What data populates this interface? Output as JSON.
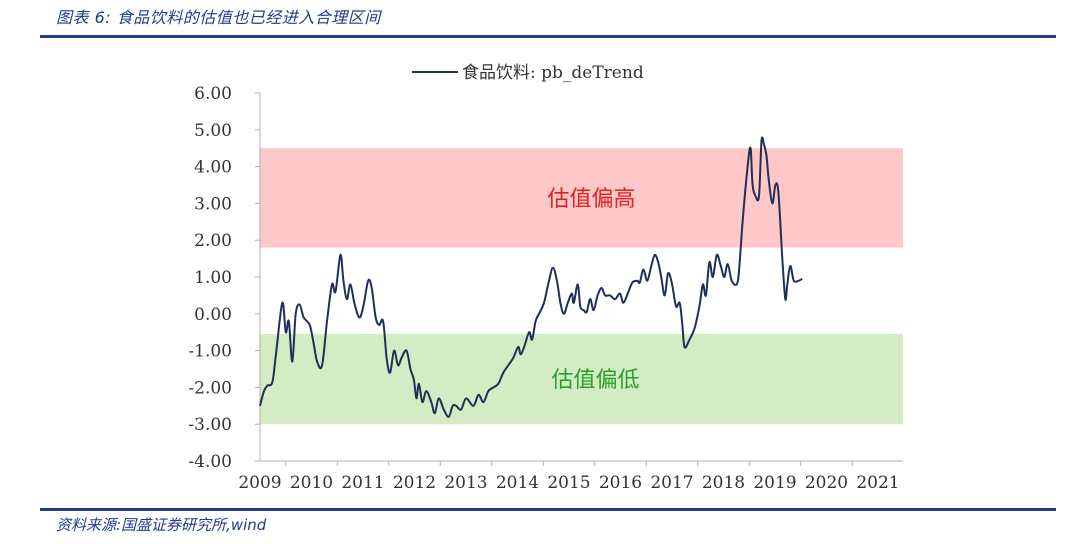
{
  "figure": {
    "title": "图表 6:  食品饮料的估值也已经进入合理区间",
    "source": "资料来源:国盛证券研究所,wind"
  },
  "chart_data": {
    "type": "line",
    "title": "",
    "xlabel": "",
    "ylabel": "",
    "legend": {
      "label": "食品饮料: pb_deTrend",
      "position": "top-center"
    },
    "ylim": [
      -4,
      6
    ],
    "yticks": [
      6,
      5,
      4,
      3,
      2,
      1,
      0,
      -1,
      -2,
      -3,
      -4
    ],
    "ytick_labels": [
      "6.00",
      "5.00",
      "4.00",
      "3.00",
      "2.00",
      "1.00",
      "0.00",
      "-1.00",
      "-2.00",
      "-3.00",
      "-4.00"
    ],
    "xlim": [
      2009,
      2021.95
    ],
    "xtick_labels": [
      "2009",
      "2010",
      "2011",
      "2012",
      "2013",
      "2014",
      "2015",
      "2016",
      "2017",
      "2018",
      "2019",
      "2020",
      "2021"
    ],
    "colors": {
      "line": "#1f2f57",
      "high_band": "#ffc8c8",
      "low_band": "#d3ecc3",
      "high_text": "#e02020",
      "low_text": "#2aa02a",
      "axis": "#b0b0b0"
    },
    "bands": [
      {
        "name": "high",
        "label": "估值偏高",
        "from": 1.8,
        "to": 4.5
      },
      {
        "name": "low",
        "label": "估值偏低",
        "from": -3.0,
        "to": -0.55
      }
    ],
    "series": [
      {
        "name": "食品饮料: pb_deTrend",
        "points": [
          [
            2009.0,
            -2.5
          ],
          [
            2009.08,
            -2.1
          ],
          [
            2009.15,
            -1.95
          ],
          [
            2009.25,
            -1.85
          ],
          [
            2009.33,
            -1.0
          ],
          [
            2009.45,
            0.3
          ],
          [
            2009.52,
            -0.5
          ],
          [
            2009.58,
            -0.2
          ],
          [
            2009.65,
            -1.3
          ],
          [
            2009.72,
            0.0
          ],
          [
            2009.8,
            0.25
          ],
          [
            2009.88,
            -0.1
          ],
          [
            2010.0,
            -0.3
          ],
          [
            2010.08,
            -0.8
          ],
          [
            2010.15,
            -1.3
          ],
          [
            2010.25,
            -1.4
          ],
          [
            2010.35,
            -0.2
          ],
          [
            2010.45,
            0.8
          ],
          [
            2010.52,
            0.6
          ],
          [
            2010.62,
            1.6
          ],
          [
            2010.68,
            0.9
          ],
          [
            2010.75,
            0.4
          ],
          [
            2010.82,
            0.8
          ],
          [
            2010.9,
            0.3
          ],
          [
            2011.0,
            -0.1
          ],
          [
            2011.08,
            0.2
          ],
          [
            2011.18,
            0.9
          ],
          [
            2011.25,
            0.7
          ],
          [
            2011.33,
            -0.1
          ],
          [
            2011.4,
            -0.3
          ],
          [
            2011.48,
            -0.2
          ],
          [
            2011.55,
            -1.2
          ],
          [
            2011.62,
            -1.6
          ],
          [
            2011.7,
            -1.0
          ],
          [
            2011.78,
            -1.4
          ],
          [
            2011.85,
            -1.2
          ],
          [
            2011.95,
            -1.0
          ],
          [
            2012.03,
            -1.5
          ],
          [
            2012.1,
            -1.8
          ],
          [
            2012.15,
            -2.3
          ],
          [
            2012.2,
            -1.9
          ],
          [
            2012.27,
            -2.4
          ],
          [
            2012.35,
            -2.1
          ],
          [
            2012.45,
            -2.4
          ],
          [
            2012.52,
            -2.7
          ],
          [
            2012.6,
            -2.3
          ],
          [
            2012.7,
            -2.6
          ],
          [
            2012.8,
            -2.8
          ],
          [
            2012.88,
            -2.5
          ],
          [
            2012.95,
            -2.5
          ],
          [
            2013.05,
            -2.6
          ],
          [
            2013.15,
            -2.3
          ],
          [
            2013.3,
            -2.5
          ],
          [
            2013.4,
            -2.2
          ],
          [
            2013.5,
            -2.4
          ],
          [
            2013.6,
            -2.1
          ],
          [
            2013.7,
            -2.0
          ],
          [
            2013.8,
            -1.9
          ],
          [
            2013.9,
            -1.6
          ],
          [
            2014.0,
            -1.4
          ],
          [
            2014.1,
            -1.2
          ],
          [
            2014.2,
            -0.9
          ],
          [
            2014.25,
            -1.1
          ],
          [
            2014.32,
            -0.9
          ],
          [
            2014.42,
            -0.5
          ],
          [
            2014.48,
            -0.7
          ],
          [
            2014.55,
            -0.2
          ],
          [
            2014.62,
            0.0
          ],
          [
            2014.72,
            0.3
          ],
          [
            2014.82,
            0.9
          ],
          [
            2014.9,
            1.25
          ],
          [
            2014.98,
            0.9
          ],
          [
            2015.05,
            0.3
          ],
          [
            2015.12,
            0.0
          ],
          [
            2015.2,
            0.3
          ],
          [
            2015.28,
            0.55
          ],
          [
            2015.32,
            0.3
          ],
          [
            2015.4,
            0.8
          ],
          [
            2015.45,
            0.2
          ],
          [
            2015.52,
            0.1
          ],
          [
            2015.58,
            0.05
          ],
          [
            2015.65,
            0.4
          ],
          [
            2015.72,
            0.1
          ],
          [
            2015.8,
            0.5
          ],
          [
            2015.88,
            0.7
          ],
          [
            2015.95,
            0.5
          ],
          [
            2016.05,
            0.5
          ],
          [
            2016.15,
            0.4
          ],
          [
            2016.25,
            0.55
          ],
          [
            2016.32,
            0.3
          ],
          [
            2016.42,
            0.6
          ],
          [
            2016.5,
            0.85
          ],
          [
            2016.6,
            0.9
          ],
          [
            2016.65,
            0.85
          ],
          [
            2016.72,
            1.2
          ],
          [
            2016.8,
            0.9
          ],
          [
            2016.88,
            1.3
          ],
          [
            2016.95,
            1.6
          ],
          [
            2017.02,
            1.4
          ],
          [
            2017.08,
            1.0
          ],
          [
            2017.15,
            0.5
          ],
          [
            2017.22,
            1.1
          ],
          [
            2017.3,
            0.8
          ],
          [
            2017.38,
            0.2
          ],
          [
            2017.45,
            0.3
          ],
          [
            2017.5,
            -0.2
          ],
          [
            2017.55,
            -0.9
          ],
          [
            2017.65,
            -0.7
          ],
          [
            2017.75,
            -0.4
          ],
          [
            2017.85,
            0.2
          ],
          [
            2017.92,
            0.8
          ],
          [
            2017.98,
            0.5
          ],
          [
            2018.05,
            1.4
          ],
          [
            2018.12,
            1.0
          ],
          [
            2018.2,
            1.6
          ],
          [
            2018.28,
            1.3
          ],
          [
            2018.35,
            1.0
          ],
          [
            2018.42,
            1.35
          ],
          [
            2018.5,
            0.9
          ],
          [
            2018.6,
            0.8
          ],
          [
            2018.65,
            1.2
          ],
          [
            2018.72,
            2.5
          ],
          [
            2018.82,
            4.0
          ],
          [
            2018.88,
            4.5
          ],
          [
            2018.92,
            3.5
          ],
          [
            2018.98,
            3.2
          ],
          [
            2019.05,
            3.2
          ],
          [
            2019.1,
            4.7
          ],
          [
            2019.15,
            4.6
          ],
          [
            2019.2,
            4.3
          ],
          [
            2019.25,
            3.6
          ],
          [
            2019.32,
            3.0
          ],
          [
            2019.38,
            3.5
          ],
          [
            2019.44,
            3.3
          ],
          [
            2019.52,
            1.5
          ],
          [
            2019.58,
            0.4
          ],
          [
            2019.62,
            0.8
          ],
          [
            2019.68,
            1.3
          ],
          [
            2019.75,
            0.9
          ],
          [
            2019.85,
            0.9
          ],
          [
            2019.92,
            0.95
          ]
        ]
      }
    ]
  }
}
